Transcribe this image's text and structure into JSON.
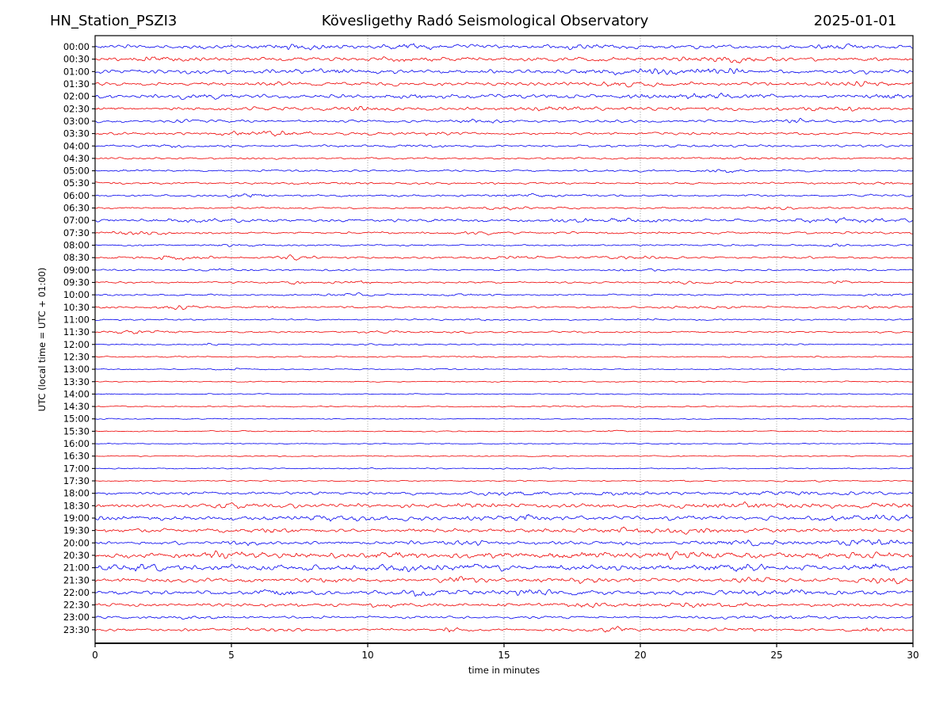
{
  "figure": {
    "station_title": "HN_Station_PSZI3",
    "observatory_title": "Kövesligethy Radó Seismological Observatory",
    "date_title": "2025-01-01",
    "background_color": "#ffffff"
  },
  "chart_data": {
    "type": "line",
    "subtype": "helicorder-dayplot",
    "station": "HN_Station_PSZI3",
    "title": "Kövesligethy Radó Seismological Observatory",
    "date": "2025-01-01",
    "xlabel": "time in minutes",
    "ylabel": "UTC (local time = UTC + 01:00)",
    "xlim": [
      0,
      30
    ],
    "x_ticks": [
      0,
      5,
      10,
      15,
      20,
      25,
      30
    ],
    "minutes_per_row": 30,
    "grid": {
      "vertical_dotted_at": [
        5,
        10,
        15,
        20,
        25
      ],
      "horizontal": false,
      "color": "#808080"
    },
    "trace_colors": {
      "blue": "#0000ee",
      "red": "#ee0000"
    },
    "axis_color": "#000000",
    "legend": "none",
    "rows": [
      {
        "label": "00:00",
        "color": "blue",
        "amp": 2.0,
        "bursts": [
          [
            7,
            1.2,
            1.4
          ],
          [
            11.5,
            0.8,
            1.8
          ],
          [
            18,
            1.5,
            0.9
          ],
          [
            27,
            1.5,
            1.1
          ]
        ]
      },
      {
        "label": "00:30",
        "color": "red",
        "amp": 2.0,
        "bursts": [
          [
            2.5,
            0.8,
            1.6
          ],
          [
            12,
            1.0,
            1.1
          ],
          [
            23.5,
            1.2,
            2.1
          ]
        ]
      },
      {
        "label": "01:00",
        "color": "blue",
        "amp": 2.0,
        "bursts": [
          [
            8.5,
            1.5,
            1.3
          ],
          [
            20,
            2.2,
            1.8
          ],
          [
            23,
            1.0,
            1.8
          ]
        ]
      },
      {
        "label": "01:30",
        "color": "red",
        "amp": 1.8,
        "bursts": [
          [
            7,
            1.0,
            0.9
          ],
          [
            19.5,
            1.5,
            1.6
          ],
          [
            28,
            1.0,
            1.1
          ]
        ]
      },
      {
        "label": "02:00",
        "color": "blue",
        "amp": 2.0,
        "bursts": [
          [
            4,
            1.0,
            1.4
          ],
          [
            12,
            1.0,
            1.3
          ],
          [
            22,
            2.0,
            1.6
          ],
          [
            29,
            0.8,
            1.9
          ]
        ]
      },
      {
        "label": "02:30",
        "color": "red",
        "amp": 1.7,
        "bursts": [
          [
            10,
            1.0,
            1.2
          ],
          [
            17,
            1.5,
            0.9
          ],
          [
            27,
            1.5,
            1.1
          ]
        ]
      },
      {
        "label": "03:00",
        "color": "blue",
        "amp": 1.4,
        "bursts": [
          [
            3.2,
            0.3,
            1.8
          ],
          [
            14,
            1.0,
            0.7
          ],
          [
            25.7,
            0.4,
            2.0
          ]
        ]
      },
      {
        "label": "03:30",
        "color": "red",
        "amp": 1.4,
        "bursts": [
          [
            6,
            1.5,
            1.6
          ],
          [
            12,
            1.0,
            0.7
          ]
        ]
      },
      {
        "label": "04:00",
        "color": "blue",
        "amp": 1.2,
        "bursts": [
          [
            2.5,
            0.8,
            0.9
          ],
          [
            12,
            1.0,
            0.5
          ],
          [
            22,
            1.0,
            0.6
          ]
        ]
      },
      {
        "label": "04:30",
        "color": "red",
        "amp": 1.0,
        "bursts": [
          [
            24,
            1.5,
            0.7
          ]
        ]
      },
      {
        "label": "05:00",
        "color": "blue",
        "amp": 1.0,
        "bursts": [
          [
            1.5,
            0.5,
            0.8
          ],
          [
            23,
            0.8,
            1.0
          ]
        ]
      },
      {
        "label": "05:30",
        "color": "red",
        "amp": 1.1,
        "bursts": [
          [
            9,
            1.0,
            0.7
          ],
          [
            29,
            0.5,
            0.9
          ]
        ]
      },
      {
        "label": "06:00",
        "color": "blue",
        "amp": 1.1,
        "bursts": [
          [
            5.5,
            0.8,
            1.4
          ],
          [
            16,
            1.5,
            0.9
          ]
        ]
      },
      {
        "label": "06:30",
        "color": "red",
        "amp": 1.0,
        "bursts": [
          [
            15,
            1.0,
            0.9
          ],
          [
            25,
            1.0,
            0.6
          ]
        ]
      },
      {
        "label": "07:00",
        "color": "blue",
        "amp": 1.5,
        "bursts": [
          [
            4,
            1.5,
            0.9
          ],
          [
            19,
            2.0,
            1.1
          ],
          [
            27.5,
            2.0,
            1.3
          ]
        ]
      },
      {
        "label": "07:30",
        "color": "red",
        "amp": 1.2,
        "bursts": [
          [
            1.5,
            1.5,
            1.1
          ],
          [
            14,
            1.0,
            0.6
          ]
        ]
      },
      {
        "label": "08:00",
        "color": "blue",
        "amp": 0.9,
        "bursts": [
          [
            5,
            0.8,
            0.7
          ],
          [
            27.2,
            0.4,
            1.4
          ]
        ]
      },
      {
        "label": "08:30",
        "color": "red",
        "amp": 1.1,
        "bursts": [
          [
            3,
            1.2,
            1.6
          ],
          [
            7.3,
            0.5,
            1.7
          ],
          [
            15.5,
            1.0,
            0.9
          ],
          [
            20,
            1.5,
            0.9
          ]
        ]
      },
      {
        "label": "09:00",
        "color": "blue",
        "amp": 0.9,
        "bursts": [
          [
            5,
            1.0,
            0.6
          ],
          [
            20,
            1.0,
            0.7
          ],
          [
            27.5,
            0.8,
            0.8
          ]
        ]
      },
      {
        "label": "09:30",
        "color": "red",
        "amp": 0.9,
        "bursts": [
          [
            8,
            1.0,
            1.1
          ],
          [
            9.7,
            0.4,
            1.4
          ],
          [
            22,
            1.5,
            0.7
          ],
          [
            27.5,
            0.5,
            1.1
          ]
        ]
      },
      {
        "label": "10:00",
        "color": "blue",
        "amp": 0.9,
        "bursts": [
          [
            9.5,
            1.2,
            0.9
          ],
          [
            13.5,
            0.8,
            0.7
          ],
          [
            29,
            0.6,
            1.1
          ]
        ]
      },
      {
        "label": "10:30",
        "color": "red",
        "amp": 1.0,
        "bursts": [
          [
            3,
            1.0,
            1.4
          ],
          [
            6.5,
            0.5,
            0.9
          ],
          [
            23,
            1.5,
            0.7
          ],
          [
            28.5,
            0.8,
            1.2
          ]
        ]
      },
      {
        "label": "11:00",
        "color": "blue",
        "amp": 0.8,
        "bursts": [
          [
            14,
            1.0,
            0.5
          ],
          [
            20.5,
            0.5,
            0.8
          ]
        ]
      },
      {
        "label": "11:30",
        "color": "red",
        "amp": 0.9,
        "bursts": [
          [
            1.5,
            1.2,
            1.2
          ],
          [
            11,
            1.0,
            0.5
          ]
        ]
      },
      {
        "label": "12:00",
        "color": "blue",
        "amp": 0.7,
        "bursts": [
          [
            4.3,
            0.3,
            1.1
          ],
          [
            10.5,
            0.8,
            0.5
          ]
        ]
      },
      {
        "label": "12:30",
        "color": "red",
        "amp": 0.7,
        "bursts": [
          [
            13.8,
            0.5,
            0.7
          ]
        ]
      },
      {
        "label": "13:00",
        "color": "blue",
        "amp": 0.6,
        "bursts": [
          [
            5,
            0.5,
            0.9
          ],
          [
            12.5,
            1.0,
            0.4
          ]
        ]
      },
      {
        "label": "13:30",
        "color": "red",
        "amp": 0.6,
        "bursts": []
      },
      {
        "label": "14:00",
        "color": "blue",
        "amp": 0.55,
        "bursts": []
      },
      {
        "label": "14:30",
        "color": "red",
        "amp": 0.6,
        "bursts": [
          [
            18,
            2.0,
            0.3
          ]
        ]
      },
      {
        "label": "15:00",
        "color": "blue",
        "amp": 0.55,
        "bursts": []
      },
      {
        "label": "15:30",
        "color": "red",
        "amp": 0.6,
        "bursts": [
          [
            19,
            0.4,
            0.8
          ]
        ]
      },
      {
        "label": "16:00",
        "color": "blue",
        "amp": 0.55,
        "bursts": []
      },
      {
        "label": "16:30",
        "color": "red",
        "amp": 0.6,
        "bursts": []
      },
      {
        "label": "17:00",
        "color": "blue",
        "amp": 0.6,
        "bursts": [
          [
            16,
            0.5,
            0.6
          ]
        ]
      },
      {
        "label": "17:30",
        "color": "red",
        "amp": 0.65,
        "bursts": [
          [
            21.5,
            0.4,
            0.8
          ],
          [
            26,
            1.0,
            0.4
          ]
        ]
      },
      {
        "label": "18:00",
        "color": "blue",
        "amp": 1.6,
        "bursts": [
          [
            15.5,
            1.0,
            1.1
          ],
          [
            19,
            1.0,
            0.9
          ],
          [
            25,
            1.5,
            1.1
          ]
        ]
      },
      {
        "label": "18:30",
        "color": "red",
        "amp": 2.0,
        "bursts": [
          [
            5,
            1.5,
            1.1
          ],
          [
            14,
            1.0,
            0.9
          ],
          [
            23.5,
            2.0,
            1.4
          ],
          [
            29,
            1.0,
            1.4
          ]
        ]
      },
      {
        "label": "19:00",
        "color": "blue",
        "amp": 2.2,
        "bursts": [
          [
            9,
            1.5,
            1.3
          ],
          [
            15.8,
            0.5,
            2.3
          ],
          [
            28.5,
            1.5,
            1.4
          ]
        ]
      },
      {
        "label": "19:30",
        "color": "red",
        "amp": 2.0,
        "bursts": [
          [
            6.5,
            0.8,
            1.4
          ],
          [
            19.5,
            1.0,
            1.1
          ],
          [
            22,
            1.5,
            1.1
          ]
        ]
      },
      {
        "label": "20:00",
        "color": "blue",
        "amp": 1.9,
        "bursts": [
          [
            5.5,
            0.5,
            1.4
          ],
          [
            13.5,
            1.0,
            0.9
          ],
          [
            24,
            1.5,
            1.4
          ],
          [
            28.5,
            1.5,
            1.9
          ]
        ]
      },
      {
        "label": "20:30",
        "color": "red",
        "amp": 2.8,
        "bursts": [
          [
            4.5,
            1.5,
            1.4
          ],
          [
            11,
            1.0,
            1.4
          ],
          [
            17.5,
            1.0,
            1.4
          ],
          [
            21.5,
            1.5,
            1.7
          ],
          [
            27.5,
            1.0,
            1.4
          ]
        ]
      },
      {
        "label": "21:00",
        "color": "blue",
        "amp": 2.8,
        "bursts": [
          [
            1.5,
            1.0,
            1.9
          ],
          [
            11,
            1.5,
            1.4
          ],
          [
            14.5,
            1.0,
            1.7
          ],
          [
            23,
            1.5,
            1.4
          ],
          [
            29,
            0.8,
            1.7
          ]
        ]
      },
      {
        "label": "21:30",
        "color": "red",
        "amp": 2.0,
        "bursts": [
          [
            8.5,
            0.5,
            1.9
          ],
          [
            13.5,
            0.5,
            2.1
          ],
          [
            18,
            1.5,
            1.1
          ],
          [
            24,
            1.0,
            1.4
          ],
          [
            29,
            1.0,
            1.9
          ]
        ]
      },
      {
        "label": "22:00",
        "color": "blue",
        "amp": 2.2,
        "bursts": [
          [
            7,
            1.0,
            1.4
          ],
          [
            12,
            1.5,
            1.4
          ],
          [
            16,
            1.0,
            1.4
          ],
          [
            25,
            1.5,
            1.1
          ]
        ]
      },
      {
        "label": "22:30",
        "color": "red",
        "amp": 1.8,
        "bursts": [
          [
            10.5,
            0.5,
            1.4
          ],
          [
            18,
            1.0,
            1.1
          ],
          [
            22.5,
            1.5,
            1.2
          ]
        ]
      },
      {
        "label": "23:00",
        "color": "blue",
        "amp": 1.3,
        "bursts": [
          [
            3.5,
            1.0,
            0.7
          ],
          [
            25,
            2.0,
            0.9
          ]
        ]
      },
      {
        "label": "23:30",
        "color": "red",
        "amp": 1.3,
        "bursts": [
          [
            6.5,
            1.0,
            0.9
          ],
          [
            13,
            0.3,
            2.1
          ],
          [
            19,
            1.0,
            1.8
          ],
          [
            23.5,
            1.0,
            1.2
          ],
          [
            28.5,
            0.8,
            1.6
          ]
        ]
      }
    ]
  }
}
